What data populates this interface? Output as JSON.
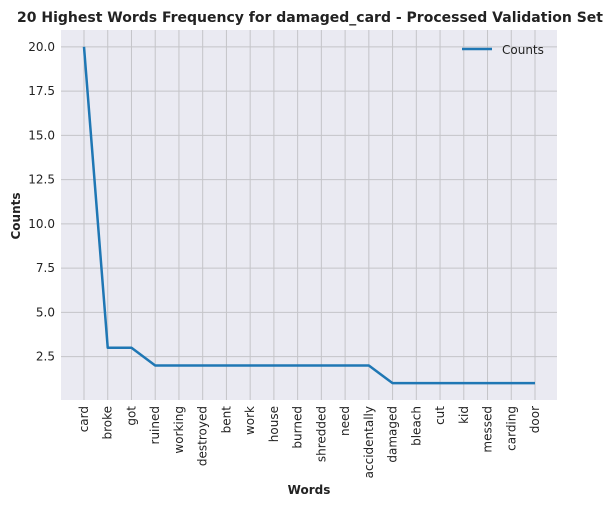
{
  "chart_data": {
    "type": "line",
    "title": "20 Highest Words Frequency for damaged_card - Processed Validation Set",
    "xlabel": "Words",
    "ylabel": "Counts",
    "categories": [
      "card",
      "broke",
      "got",
      "ruined",
      "working",
      "destroyed",
      "bent",
      "work",
      "house",
      "burned",
      "shredded",
      "need",
      "accidentally",
      "damaged",
      "bleach",
      "cut",
      "kid",
      "messed",
      "carding",
      "door"
    ],
    "series": [
      {
        "name": "Counts",
        "values": [
          20,
          3,
          3,
          2,
          2,
          2,
          2,
          2,
          2,
          2,
          2,
          2,
          2,
          1,
          1,
          1,
          1,
          1,
          1,
          1
        ],
        "color": "#1f77b4"
      }
    ],
    "yticks": [
      "2.5",
      "5.0",
      "7.5",
      "10.0",
      "12.5",
      "15.0",
      "17.5",
      "20.0"
    ],
    "ylim": [
      0.05,
      20.95
    ],
    "grid": true,
    "legend": "top-right",
    "background": "#eaeaf2"
  }
}
